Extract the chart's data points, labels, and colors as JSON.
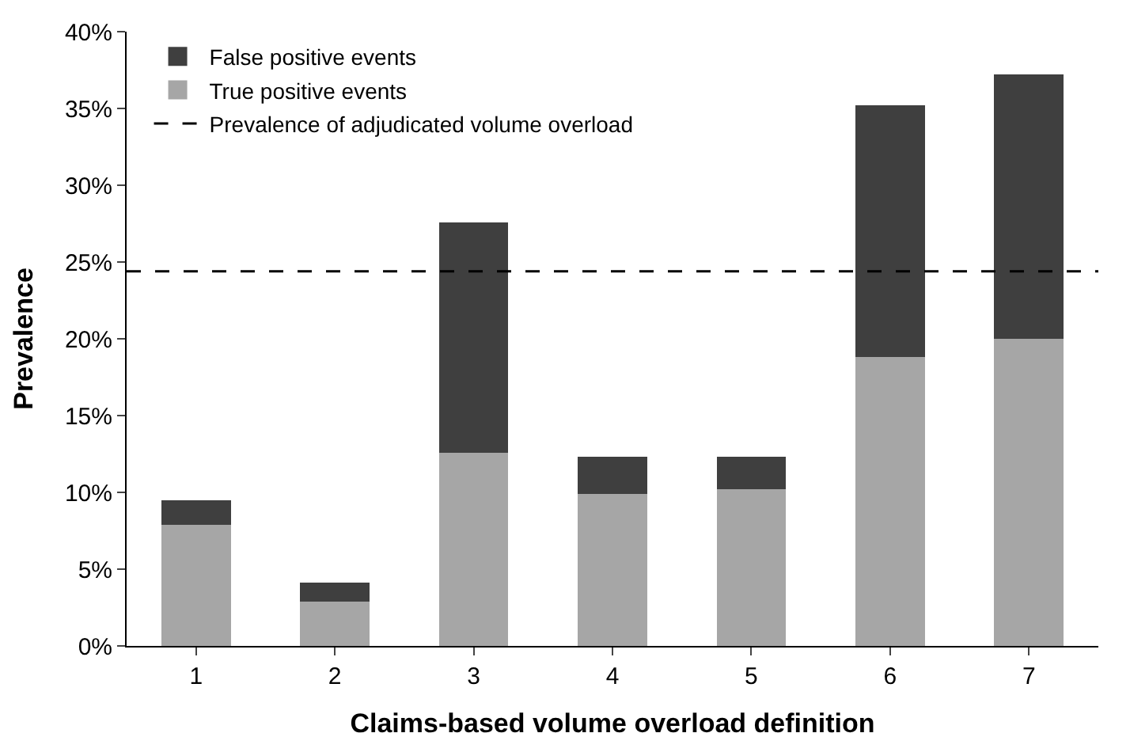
{
  "chart_data": {
    "type": "bar",
    "stacked": true,
    "xlabel": "Claims-based volume overload definition",
    "ylabel": "Prevalence",
    "categories": [
      "1",
      "2",
      "3",
      "4",
      "5",
      "6",
      "7"
    ],
    "series": [
      {
        "name": "True positive events",
        "color": "#a6a6a6",
        "values": [
          7.9,
          2.9,
          12.6,
          9.9,
          10.2,
          18.8,
          20.0
        ]
      },
      {
        "name": "False positive events",
        "color": "#3f3f3f",
        "values": [
          1.6,
          1.2,
          15.0,
          2.4,
          2.1,
          16.4,
          17.2
        ]
      }
    ],
    "ylim": [
      0,
      40
    ],
    "yticks": [
      {
        "value": 0,
        "label": "0%"
      },
      {
        "value": 5,
        "label": "5%"
      },
      {
        "value": 10,
        "label": "10%"
      },
      {
        "value": 15,
        "label": "15%"
      },
      {
        "value": 20,
        "label": "20%"
      },
      {
        "value": 25,
        "label": "25%"
      },
      {
        "value": 30,
        "label": "30%"
      },
      {
        "value": 35,
        "label": "35%"
      },
      {
        "value": 40,
        "label": "40%"
      }
    ],
    "ref_lines": [
      {
        "axis": "y",
        "value": 24.4,
        "label": "Prevalence of adjudicated volume overload",
        "color": "#000000",
        "line_style": "dashed"
      }
    ],
    "legend": "top left"
  }
}
